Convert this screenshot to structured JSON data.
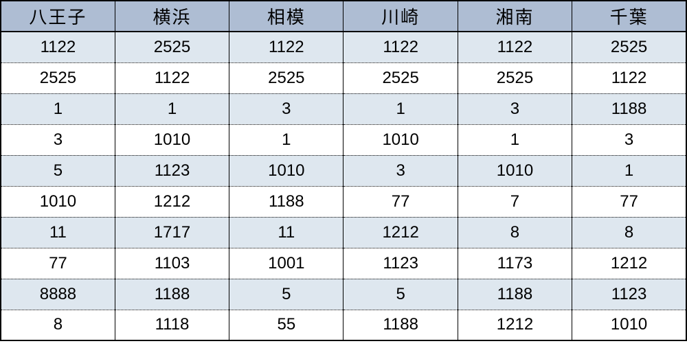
{
  "table": {
    "columns": [
      "八王子",
      "横浜",
      "相模",
      "川崎",
      "湘南",
      "千葉"
    ],
    "rows": [
      [
        "1122",
        "2525",
        "1122",
        "1122",
        "1122",
        "2525"
      ],
      [
        "2525",
        "1122",
        "2525",
        "2525",
        "2525",
        "1122"
      ],
      [
        "1",
        "1",
        "3",
        "1",
        "3",
        "1188"
      ],
      [
        "3",
        "1010",
        "1",
        "1010",
        "1",
        "3"
      ],
      [
        "5",
        "1123",
        "1010",
        "3",
        "1010",
        "1"
      ],
      [
        "1010",
        "1212",
        "1188",
        "77",
        "7",
        "77"
      ],
      [
        "11",
        "1717",
        "11",
        "1212",
        "8",
        "8"
      ],
      [
        "77",
        "1103",
        "1001",
        "1123",
        "1173",
        "1212"
      ],
      [
        "8888",
        "1188",
        "5",
        "5",
        "1188",
        "1123"
      ],
      [
        "8",
        "1118",
        "55",
        "1188",
        "1212",
        "1010"
      ]
    ],
    "header_bg": "#aebdd3",
    "row_alt_bg": "#dee7ef",
    "row_bg": "#ffffff",
    "text_color": "#000000",
    "header_fontsize": 26,
    "cell_fontsize": 24
  }
}
